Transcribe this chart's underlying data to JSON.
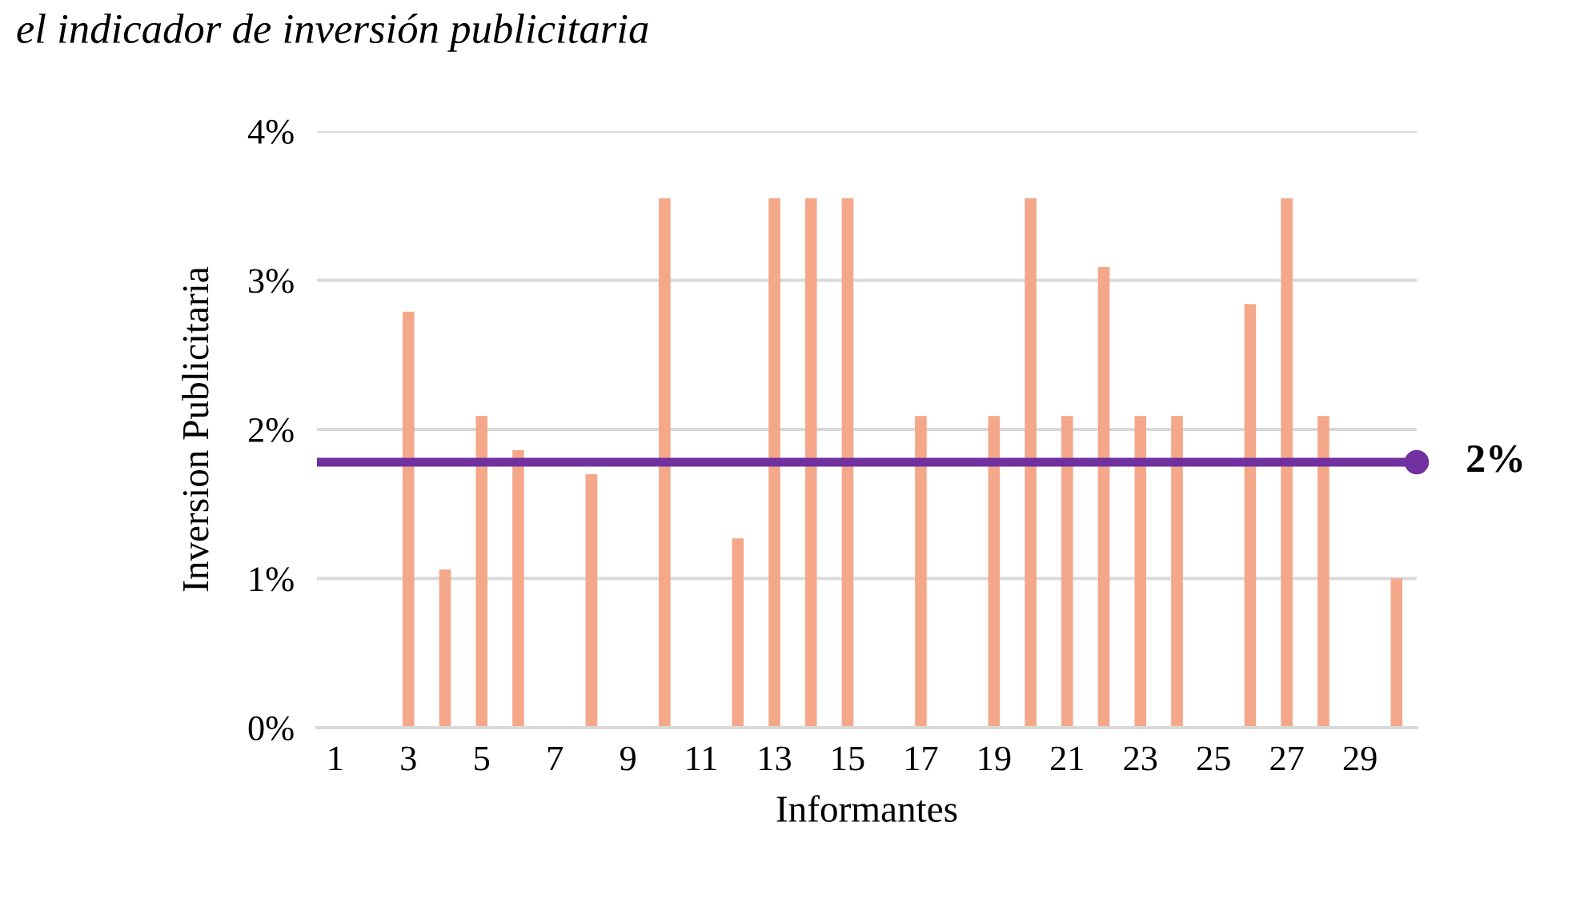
{
  "chart_data": {
    "type": "bar",
    "title": "el indicador de inversión publicitaria",
    "xlabel": "Informantes",
    "ylabel": "Inversion Publicitaria",
    "categories": [
      "1",
      null,
      "3",
      null,
      "5",
      null,
      "7",
      null,
      "9",
      null,
      "11",
      null,
      "13",
      null,
      "15",
      null,
      "17",
      null,
      "19",
      null,
      "21",
      null,
      "23",
      null,
      "25",
      null,
      "27",
      null,
      "29",
      null
    ],
    "values": [
      0,
      0,
      2.79,
      1.06,
      2.09,
      1.86,
      0,
      1.7,
      0,
      3.55,
      0,
      1.27,
      3.55,
      3.55,
      3.55,
      0,
      2.09,
      0,
      2.09,
      3.55,
      2.09,
      3.09,
      2.09,
      2.09,
      0,
      2.84,
      3.55,
      2.09,
      0,
      1.0
    ],
    "color": "#f4a889",
    "ylim": [
      0,
      4
    ],
    "yticks": [
      {
        "value": 0,
        "label": "0%"
      },
      {
        "value": 1,
        "label": "1%"
      },
      {
        "value": 2,
        "label": "2%"
      },
      {
        "value": 3,
        "label": "3%"
      },
      {
        "value": 4,
        "label": "4%"
      }
    ],
    "grid": "y",
    "ref_lines": [
      {
        "axis": "y",
        "value": 1.78,
        "label": "2%",
        "color": "#7030a0"
      }
    ]
  }
}
